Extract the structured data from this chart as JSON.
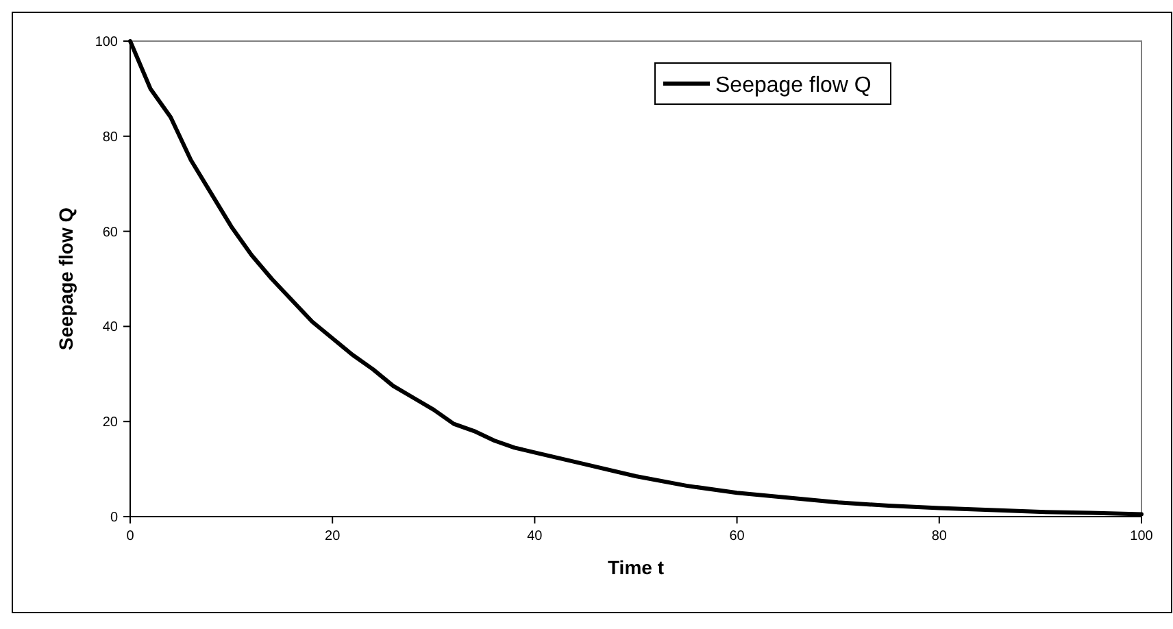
{
  "chart_data": {
    "type": "line",
    "xlabel": "Time t",
    "ylabel": "Seepage flow Q",
    "x": [
      0,
      2,
      4,
      6,
      8,
      10,
      12,
      14,
      16,
      18,
      20,
      22,
      24,
      26,
      28,
      30,
      32,
      34,
      36,
      38,
      40,
      45,
      50,
      55,
      60,
      65,
      70,
      75,
      80,
      85,
      90,
      95,
      100
    ],
    "series": [
      {
        "name": "Seepage flow Q",
        "color": "#000000",
        "values": [
          100,
          90,
          84,
          75,
          68,
          61,
          55,
          50,
          45.5,
          41,
          37.5,
          34,
          31,
          27.5,
          25,
          22.5,
          19.5,
          18,
          16,
          14.5,
          13.5,
          11,
          8.5,
          6.5,
          5,
          4,
          3,
          2.3,
          1.8,
          1.4,
          1,
          0.8,
          0.5
        ]
      }
    ],
    "xlim": [
      0,
      100
    ],
    "xticks": [
      0,
      20,
      40,
      60,
      80,
      100
    ],
    "ylim": [
      0,
      100
    ],
    "yticks": [
      0,
      20,
      40,
      60,
      80,
      100
    ],
    "grid": false,
    "legend": "top right",
    "marker": "none",
    "line_style": "solid"
  }
}
